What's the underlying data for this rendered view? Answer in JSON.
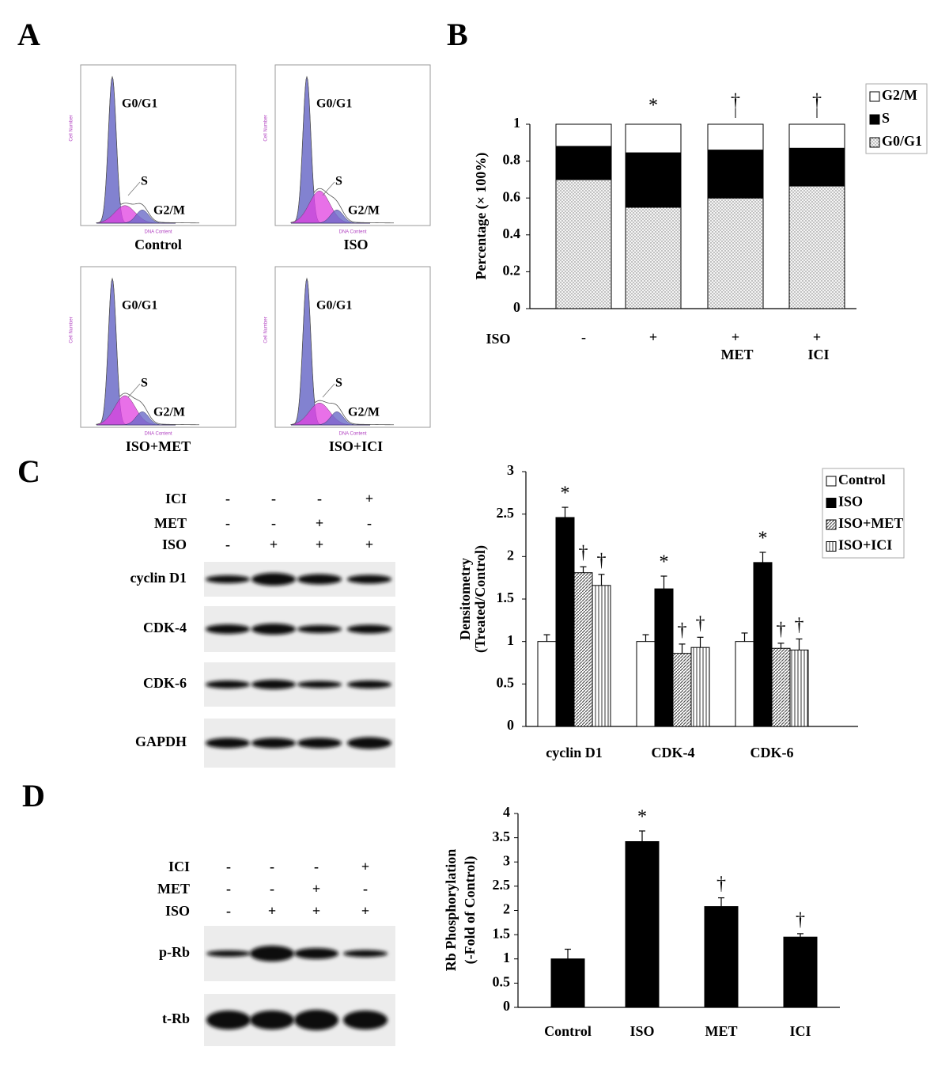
{
  "panel_labels": [
    "A",
    "B",
    "C",
    "D"
  ],
  "flow": {
    "y_axis_label": "Cell Number",
    "x_axis_label": "DNA Content",
    "plots": [
      {
        "title": "Control",
        "peaks": [
          "G0/G1",
          "S",
          "G2/M"
        ]
      },
      {
        "title": "ISO",
        "peaks": [
          "G0/G1",
          "S",
          "G2/M"
        ]
      },
      {
        "title": "ISO+MET",
        "peaks": [
          "G0/G1",
          "S",
          "G2/M"
        ]
      },
      {
        "title": "ISO+ICI",
        "peaks": [
          "G0/G1",
          "S",
          "G2/M"
        ]
      }
    ]
  },
  "blots": [
    {
      "rows": [
        {
          "label": "ICI",
          "signs": [
            "-",
            "-",
            "-",
            "+"
          ]
        },
        {
          "label": "MET",
          "signs": [
            "-",
            "-",
            "+",
            "-"
          ]
        },
        {
          "label": "ISO",
          "signs": [
            "-",
            "+",
            "+",
            "+"
          ]
        }
      ],
      "bands": [
        "cyclin D1",
        "CDK-4",
        "CDK-6",
        "GAPDH"
      ]
    },
    {
      "rows": [
        {
          "label": "ICI",
          "signs": [
            "-",
            "-",
            "-",
            "+"
          ]
        },
        {
          "label": "MET",
          "signs": [
            "-",
            "-",
            "+",
            "-"
          ]
        },
        {
          "label": "ISO",
          "signs": [
            "-",
            "+",
            "+",
            "+"
          ]
        }
      ],
      "bands": [
        "p-Rb",
        "t-Rb"
      ]
    }
  ],
  "chart_data": [
    {
      "type": "stacked_bar",
      "ylabel": "Percentage (× 100%)",
      "row_label": "ISO",
      "categories": [
        "-",
        "+",
        "+",
        "+"
      ],
      "category_sublabels": [
        null,
        null,
        "MET",
        "ICI"
      ],
      "markers": [
        null,
        "*",
        "†",
        "†"
      ],
      "series": [
        {
          "name": "G0/G1",
          "color": "#d8d8d8",
          "pattern": "dots",
          "values": [
            0.7,
            0.55,
            0.6,
            0.665
          ]
        },
        {
          "name": "S",
          "color": "#000000",
          "values": [
            0.18,
            0.295,
            0.26,
            0.205
          ]
        },
        {
          "name": "G2/M",
          "color": "#ffffff",
          "values": [
            0.12,
            0.155,
            0.14,
            0.13
          ]
        }
      ],
      "ylim": [
        0,
        1
      ],
      "yticks": [
        0,
        0.2,
        0.4,
        0.6,
        0.8,
        1
      ],
      "legend": "upper right"
    },
    {
      "type": "bar",
      "ylabel": [
        "Densitometry",
        "(Treated/Control)"
      ],
      "categories": [
        "cyclin D1",
        "CDK-4",
        "CDK-6"
      ],
      "series": [
        {
          "name": "Control",
          "color": "#ffffff",
          "values": [
            1,
            1,
            1
          ],
          "errors": [
            0.08,
            0.08,
            0.1
          ]
        },
        {
          "name": "ISO",
          "color": "#000000",
          "values": [
            2.46,
            1.62,
            1.93
          ],
          "errors": [
            0.12,
            0.15,
            0.12
          ],
          "markers": [
            "*",
            "*",
            "*"
          ]
        },
        {
          "name": "ISO+MET",
          "color": "#888888",
          "pattern": "diagonal",
          "values": [
            1.81,
            0.86,
            0.92
          ],
          "errors": [
            0.07,
            0.11,
            0.06
          ],
          "markers": [
            "†",
            "†",
            "†"
          ]
        },
        {
          "name": "ISO+ICI",
          "color": "#888888",
          "pattern": "vertical",
          "values": [
            1.66,
            0.93,
            0.9
          ],
          "errors": [
            0.13,
            0.12,
            0.13
          ],
          "markers": [
            "†",
            "†",
            "†"
          ]
        }
      ],
      "ylim": [
        0,
        3
      ],
      "yticks": [
        0,
        0.5,
        1,
        1.5,
        2,
        2.5,
        3
      ],
      "legend": "upper right"
    },
    {
      "type": "bar",
      "ylabel": [
        "Rb Phosphorylation",
        "(-Fold of Control)"
      ],
      "categories": [
        "Control",
        "ISO",
        "MET",
        "ICI"
      ],
      "series": [
        {
          "color": "#000000",
          "values": [
            1,
            3.42,
            2.08,
            1.45
          ],
          "errors": [
            0.2,
            0.22,
            0.18,
            0.07
          ],
          "markers": [
            null,
            "*",
            "†",
            "†"
          ]
        }
      ],
      "ylim": [
        0,
        4
      ],
      "yticks": [
        0,
        0.5,
        1,
        1.5,
        2,
        2.5,
        3,
        3.5,
        4
      ]
    }
  ]
}
